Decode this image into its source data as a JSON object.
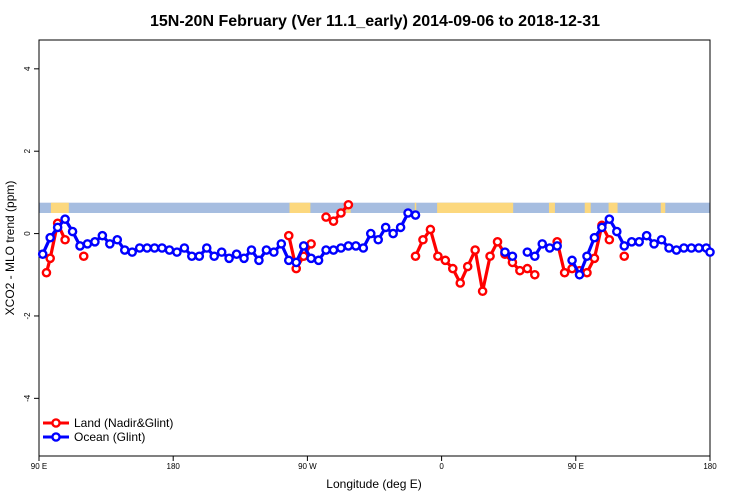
{
  "chart_data": {
    "type": "line",
    "title": "15N-20N February (Ver 11.1_early)   2014-09-06 to 2018-12-31",
    "xlabel": "Longitude (deg E)",
    "ylabel": "XCO2 - MLO trend (ppm)",
    "x_tick_labels": [
      "90 E",
      "180",
      "90 W",
      "0",
      "90 E",
      "180"
    ],
    "x_tick_values": [
      90,
      180,
      270,
      360,
      450,
      540
    ],
    "x_range": [
      90,
      540
    ],
    "y_tick_labels": [
      "-4",
      "-2",
      "0",
      "2",
      "4"
    ],
    "y_tick_values": [
      -4,
      -2,
      0,
      2,
      4
    ],
    "y_range": [
      -5.4,
      4.7
    ],
    "grid": false,
    "legend_position": "bottom-left",
    "colors": {
      "land": "#ff0000",
      "ocean": "#0000ff",
      "land_mask": "#fcd87e",
      "ocean_mask": "#a6bde0"
    },
    "series": [
      {
        "name": "Land (Nadir&Glint)",
        "color": "#ff0000",
        "segments": [
          [
            [
              95,
              -0.95
            ],
            [
              97.5,
              -0.6
            ],
            [
              102.5,
              0.25
            ],
            [
              107.5,
              -0.15
            ]
          ],
          [
            [
              120,
              -0.55
            ]
          ],
          [
            [
              257.5,
              -0.05
            ],
            [
              262.5,
              -0.85
            ],
            [
              267.5,
              -0.55
            ],
            [
              272.5,
              -0.25
            ]
          ],
          [
            [
              282.5,
              0.4
            ],
            [
              287.5,
              0.3
            ],
            [
              292.5,
              0.5
            ],
            [
              297.5,
              0.7
            ]
          ],
          [
            [
              342.5,
              -0.55
            ],
            [
              347.5,
              -0.15
            ],
            [
              352.5,
              0.1
            ],
            [
              357.5,
              -0.55
            ],
            [
              362.5,
              -0.65
            ],
            [
              367.5,
              -0.85
            ],
            [
              372.5,
              -1.2
            ],
            [
              377.5,
              -0.8
            ],
            [
              382.5,
              -0.4
            ],
            [
              387.5,
              -1.4
            ],
            [
              392.5,
              -0.55
            ],
            [
              397.5,
              -0.2
            ],
            [
              402.5,
              -0.5
            ],
            [
              407.5,
              -0.7
            ],
            [
              412.5,
              -0.9
            ],
            [
              417.5,
              -0.85
            ],
            [
              422.5,
              -1.0
            ]
          ],
          [
            [
              437.5,
              -0.2
            ],
            [
              442.5,
              -0.95
            ],
            [
              447.5,
              -0.85
            ],
            [
              452.5,
              -0.9
            ],
            [
              457.5,
              -0.95
            ],
            [
              462.5,
              -0.6
            ],
            [
              467.5,
              0.2
            ],
            [
              472.5,
              -0.15
            ]
          ],
          [
            [
              482.5,
              -0.55
            ]
          ]
        ]
      },
      {
        "name": "Ocean (Glint)",
        "color": "#0000ff",
        "segments": [
          [
            [
              92.5,
              -0.5
            ],
            [
              97.5,
              -0.1
            ],
            [
              102.5,
              0.15
            ],
            [
              107.5,
              0.35
            ],
            [
              112.5,
              0.05
            ],
            [
              117.5,
              -0.3
            ],
            [
              122.5,
              -0.25
            ],
            [
              127.5,
              -0.2
            ],
            [
              132.5,
              -0.05
            ],
            [
              137.5,
              -0.25
            ],
            [
              142.5,
              -0.15
            ],
            [
              147.5,
              -0.4
            ],
            [
              152.5,
              -0.45
            ],
            [
              157.5,
              -0.35
            ],
            [
              162.5,
              -0.35
            ],
            [
              167.5,
              -0.35
            ],
            [
              172.5,
              -0.35
            ],
            [
              177.5,
              -0.4
            ],
            [
              182.5,
              -0.45
            ],
            [
              187.5,
              -0.35
            ],
            [
              192.5,
              -0.55
            ],
            [
              197.5,
              -0.55
            ],
            [
              202.5,
              -0.35
            ],
            [
              207.5,
              -0.55
            ],
            [
              212.5,
              -0.45
            ],
            [
              217.5,
              -0.6
            ],
            [
              222.5,
              -0.5
            ],
            [
              227.5,
              -0.6
            ],
            [
              232.5,
              -0.4
            ],
            [
              237.5,
              -0.65
            ],
            [
              242.5,
              -0.4
            ],
            [
              247.5,
              -0.45
            ],
            [
              252.5,
              -0.25
            ],
            [
              257.5,
              -0.65
            ],
            [
              262.5,
              -0.7
            ],
            [
              267.5,
              -0.3
            ],
            [
              272.5,
              -0.6
            ],
            [
              277.5,
              -0.65
            ],
            [
              282.5,
              -0.4
            ],
            [
              287.5,
              -0.4
            ],
            [
              292.5,
              -0.35
            ],
            [
              297.5,
              -0.3
            ],
            [
              302.5,
              -0.3
            ],
            [
              307.5,
              -0.35
            ],
            [
              312.5,
              0.0
            ],
            [
              317.5,
              -0.15
            ],
            [
              322.5,
              0.15
            ],
            [
              327.5,
              0.0
            ],
            [
              332.5,
              0.15
            ],
            [
              337.5,
              0.5
            ],
            [
              342.5,
              0.45
            ]
          ],
          [
            [
              402.5,
              -0.45
            ],
            [
              407.5,
              -0.55
            ]
          ],
          [
            [
              417.5,
              -0.45
            ],
            [
              422.5,
              -0.55
            ],
            [
              427.5,
              -0.25
            ],
            [
              432.5,
              -0.35
            ],
            [
              437.5,
              -0.3
            ]
          ],
          [
            [
              447.5,
              -0.65
            ],
            [
              452.5,
              -1.0
            ],
            [
              457.5,
              -0.55
            ],
            [
              462.5,
              -0.1
            ],
            [
              467.5,
              0.15
            ],
            [
              472.5,
              0.35
            ],
            [
              477.5,
              0.05
            ],
            [
              482.5,
              -0.3
            ],
            [
              487.5,
              -0.2
            ],
            [
              492.5,
              -0.2
            ],
            [
              497.5,
              -0.05
            ],
            [
              502.5,
              -0.25
            ],
            [
              507.5,
              -0.15
            ],
            [
              512.5,
              -0.35
            ],
            [
              517.5,
              -0.4
            ],
            [
              522.5,
              -0.35
            ],
            [
              527.5,
              -0.35
            ],
            [
              532.5,
              -0.35
            ],
            [
              537.5,
              -0.35
            ],
            [
              540,
              -0.45
            ]
          ]
        ]
      }
    ],
    "land_mask_bands": [
      [
        98,
        110
      ],
      [
        258,
        272
      ],
      [
        296,
        299
      ],
      [
        342,
        343
      ],
      [
        357,
        408
      ],
      [
        432,
        436
      ],
      [
        456,
        460
      ],
      [
        472,
        478
      ],
      [
        507,
        510
      ]
    ]
  }
}
